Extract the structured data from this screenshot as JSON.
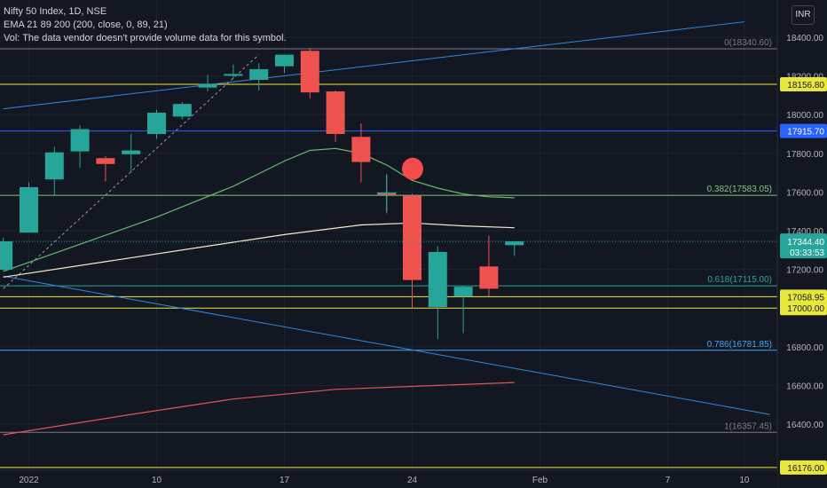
{
  "header": {
    "title": "Nifty 50 Index, 1D, NSE",
    "indicator": "EMA 21 89 200 (200, close, 0, 89, 21)",
    "volume_note": "Vol: The data vendor doesn't provide volume data for this symbol."
  },
  "currency": "INR",
  "colors": {
    "background": "#131722",
    "up": "#26a69a",
    "down": "#ef5350",
    "ema21": "#66bb6a",
    "ema89": "#f0ecd0",
    "ema200": "#e25453",
    "trendline": "#2f89e0",
    "hline_yellow": "#e8e83b",
    "hline_blue": "#2962ff",
    "fib_line": "#787b86",
    "current_price": "#26a69a"
  },
  "chart_data": {
    "type": "candlestick",
    "symbol": "Nifty 50 Index",
    "interval": "1D",
    "exchange": "NSE",
    "ylim": [
      16176,
      18480
    ],
    "y_ticks": [
      16400.0,
      16600.0,
      16800.0,
      17000.0,
      17200.0,
      17400.0,
      17600.0,
      17800.0,
      18000.0,
      18200.0,
      18400.0
    ],
    "x_ticks": [
      {
        "label": "2022",
        "day": 0
      },
      {
        "label": "10",
        "day": 5
      },
      {
        "label": "17",
        "day": 10
      },
      {
        "label": "24",
        "day": 15
      },
      {
        "label": "Feb",
        "day": 20
      },
      {
        "label": "7",
        "day": 25
      },
      {
        "label": "10",
        "day": 28
      }
    ],
    "candles": [
      {
        "day": -1,
        "open": 17198,
        "high": 17365,
        "low": 17195,
        "close": 17345
      },
      {
        "day": 0,
        "open": 17390,
        "high": 17650,
        "low": 17390,
        "close": 17625
      },
      {
        "day": 1,
        "open": 17665,
        "high": 17835,
        "low": 17585,
        "close": 17805
      },
      {
        "day": 2,
        "open": 17810,
        "high": 17945,
        "low": 17725,
        "close": 17925
      },
      {
        "day": 3,
        "open": 17775,
        "high": 17785,
        "low": 17655,
        "close": 17745
      },
      {
        "day": 4,
        "open": 17795,
        "high": 17900,
        "low": 17700,
        "close": 17815
      },
      {
        "day": 5,
        "open": 17900,
        "high": 18025,
        "low": 17875,
        "close": 18010
      },
      {
        "day": 6,
        "open": 17990,
        "high": 18065,
        "low": 17975,
        "close": 18055
      },
      {
        "day": 7,
        "open": 18140,
        "high": 18205,
        "low": 18120,
        "close": 18160
      },
      {
        "day": 8,
        "open": 18210,
        "high": 18260,
        "low": 18185,
        "close": 18210
      },
      {
        "day": 9,
        "open": 18180,
        "high": 18265,
        "low": 18125,
        "close": 18235
      },
      {
        "day": 10,
        "open": 18250,
        "high": 18310,
        "low": 18215,
        "close": 18310
      },
      {
        "day": 11,
        "open": 18330,
        "high": 18345,
        "low": 18085,
        "close": 18115
      },
      {
        "day": 12,
        "open": 18120,
        "high": 18125,
        "low": 17860,
        "close": 17900
      },
      {
        "day": 13,
        "open": 17885,
        "high": 17955,
        "low": 17650,
        "close": 17755
      },
      {
        "day": 14,
        "open": 17595,
        "high": 17685,
        "low": 17490,
        "close": 17590
      },
      {
        "day": 15,
        "open": 17580,
        "high": 17590,
        "low": 17000,
        "close": 17145
      },
      {
        "day": 16,
        "open": 17005,
        "high": 17320,
        "low": 16840,
        "close": 17290
      },
      {
        "day": 17,
        "open": 17060,
        "high": 17115,
        "low": 16870,
        "close": 17110
      },
      {
        "day": 18,
        "open": 17215,
        "high": 17375,
        "low": 17060,
        "close": 17100
      },
      {
        "day": 19,
        "open": 17325,
        "high": 17340,
        "low": 17270,
        "close": 17345
      }
    ],
    "ema21": [
      [
        -1,
        17190
      ],
      [
        2,
        17330
      ],
      [
        5,
        17470
      ],
      [
        8,
        17630
      ],
      [
        10,
        17760
      ],
      [
        11,
        17815
      ],
      [
        12,
        17825
      ],
      [
        13,
        17800
      ],
      [
        14,
        17740
      ],
      [
        15,
        17660
      ],
      [
        16,
        17620
      ],
      [
        17,
        17590
      ],
      [
        18,
        17575
      ],
      [
        19,
        17570
      ]
    ],
    "ema89": [
      [
        -1,
        17160
      ],
      [
        3,
        17240
      ],
      [
        7,
        17320
      ],
      [
        10,
        17380
      ],
      [
        13,
        17430
      ],
      [
        15,
        17440
      ],
      [
        17,
        17425
      ],
      [
        19,
        17415
      ]
    ],
    "ema200": [
      [
        -1,
        16345
      ],
      [
        4,
        16450
      ],
      [
        8,
        16530
      ],
      [
        12,
        16580
      ],
      [
        16,
        16600
      ],
      [
        19,
        16615
      ]
    ],
    "horizontal_lines": [
      {
        "price": 18340.6,
        "label": "0(18340.60)",
        "style": "fib"
      },
      {
        "price": 18156.8,
        "tag": "18156.80",
        "style": "yellow"
      },
      {
        "price": 17915.7,
        "tag": "17915.70",
        "style": "blue"
      },
      {
        "price": 17583.05,
        "label": "0.382(17583.05)",
        "style": "fib-green"
      },
      {
        "price": 17115.0,
        "label": "0.618(17115.00)",
        "style": "fib-teal"
      },
      {
        "price": 17058.95,
        "tag": "17058.95",
        "style": "yellow"
      },
      {
        "price": 17000.0,
        "tag": "17000.00",
        "style": "yellow"
      },
      {
        "price": 16781.85,
        "label": "0.786(16781.85)",
        "style": "fib-blue"
      },
      {
        "price": 16357.45,
        "label": "1(16357.45)",
        "style": "fib"
      },
      {
        "price": 16176.0,
        "tag": "16176.00",
        "style": "yellow"
      }
    ],
    "trendlines": [
      {
        "from": [
          -1,
          18030
        ],
        "to": [
          28,
          18480
        ],
        "style": "trend"
      },
      {
        "from": [
          -1,
          17165
        ],
        "to": [
          29,
          16450
        ],
        "style": "trend"
      },
      {
        "from": [
          -1,
          17100
        ],
        "to": [
          9,
          18310
        ],
        "style": "dashed"
      }
    ],
    "markers": [
      {
        "type": "circle",
        "day": 15,
        "price": 17720
      },
      {
        "type": "cross",
        "day": 14,
        "price": 17595
      }
    ],
    "current_price": {
      "value": "17344.40",
      "countdown": "03:33:53",
      "price": 17344.4
    }
  }
}
